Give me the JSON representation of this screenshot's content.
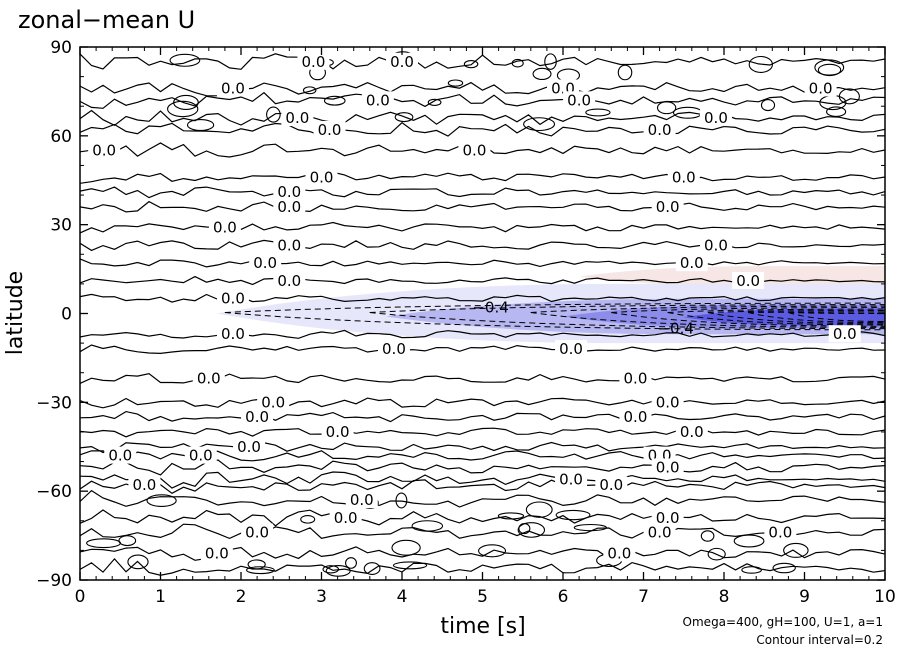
{
  "chart_data": {
    "type": "contour",
    "title": "zonal−mean U",
    "xlabel": "time [s]",
    "ylabel": "latitude",
    "xlim": [
      0,
      10
    ],
    "ylim": [
      -90,
      90
    ],
    "x_ticks": [
      "0",
      "1",
      "2",
      "3",
      "4",
      "5",
      "6",
      "7",
      "8",
      "9",
      "10"
    ],
    "y_ticks": [
      "90",
      "60",
      "30",
      "0",
      "−30",
      "−60",
      "−90"
    ],
    "contour_interval": 0.2,
    "contour_label_text": "0.0",
    "negative_label_text": "−0.4",
    "annotations": [
      "Omega=400, gH=100, U=1, a=1",
      "Contour interval=0.2"
    ],
    "contour_lines": [
      {
        "lat": 85,
        "value": 0.0,
        "label_at": [
          2.9,
          4.0
        ]
      },
      {
        "lat": 76,
        "value": 0.0,
        "label_at": [
          1.9,
          6.0,
          9.2
        ]
      },
      {
        "lat": 72,
        "value": 0.0,
        "label_at": [
          3.7,
          6.2
        ]
      },
      {
        "lat": 66,
        "value": 0.0,
        "label_at": [
          2.7,
          7.9
        ]
      },
      {
        "lat": 62,
        "value": 0.0,
        "label_at": [
          3.1,
          7.2
        ]
      },
      {
        "lat": 55,
        "value": 0.0,
        "label_at": [
          0.3,
          4.9
        ]
      },
      {
        "lat": 46,
        "value": 0.0,
        "label_at": [
          3.0,
          7.5
        ]
      },
      {
        "lat": 41,
        "value": 0.0,
        "label_at": [
          2.6
        ]
      },
      {
        "lat": 36,
        "value": 0.0,
        "label_at": [
          2.6,
          7.3
        ]
      },
      {
        "lat": 29,
        "value": 0.0,
        "label_at": [
          1.8
        ]
      },
      {
        "lat": 23,
        "value": 0.0,
        "label_at": [
          2.6,
          7.9
        ]
      },
      {
        "lat": 17,
        "value": 0.0,
        "label_at": [
          2.3,
          7.6
        ]
      },
      {
        "lat": 11,
        "value": 0.0,
        "label_at": [
          2.6,
          8.3
        ]
      },
      {
        "lat": 5,
        "value": 0.0,
        "label_at": [
          1.9
        ]
      },
      {
        "lat": -7,
        "value": 0.0,
        "label_at": [
          1.9,
          9.5
        ]
      },
      {
        "lat": -12,
        "value": 0.0,
        "label_at": [
          3.9,
          6.1
        ]
      },
      {
        "lat": -22,
        "value": 0.0,
        "label_at": [
          1.6,
          6.9
        ]
      },
      {
        "lat": -30,
        "value": 0.0,
        "label_at": [
          2.4,
          7.3
        ]
      },
      {
        "lat": -35,
        "value": 0.0,
        "label_at": [
          2.2,
          6.9
        ]
      },
      {
        "lat": -40,
        "value": 0.0,
        "label_at": [
          3.2,
          7.6
        ]
      },
      {
        "lat": -45,
        "value": 0.0,
        "label_at": [
          2.1
        ]
      },
      {
        "lat": -48,
        "value": 0.0,
        "label_at": [
          0.5,
          1.5,
          7.2
        ]
      },
      {
        "lat": -52,
        "value": 0.0,
        "label_at": [
          7.3
        ]
      },
      {
        "lat": -56,
        "value": 0.0,
        "label_at": [
          6.1
        ]
      },
      {
        "lat": -58,
        "value": 0.0,
        "label_at": [
          0.8,
          6.6
        ]
      },
      {
        "lat": -63,
        "value": 0.0,
        "label_at": [
          3.5
        ]
      },
      {
        "lat": -69,
        "value": 0.0,
        "label_at": [
          3.3,
          7.3
        ]
      },
      {
        "lat": -74,
        "value": 0.0,
        "label_at": [
          2.2,
          7.2,
          8.7
        ]
      },
      {
        "lat": -81,
        "value": 0.0,
        "label_at": [
          1.7,
          6.7
        ]
      },
      {
        "lat": -86,
        "value": 0.0,
        "label_at": []
      }
    ],
    "filled_regions": [
      {
        "sign": "positive",
        "lat_range": [
          9,
          16
        ],
        "x_range": [
          6.2,
          10
        ],
        "color": "#f6e6e6"
      },
      {
        "sign": "negative",
        "lat_range": [
          -10,
          10
        ],
        "x_range": [
          1.7,
          10
        ],
        "color": "#e7e7fb"
      },
      {
        "sign": "negative",
        "lat_range": [
          -7,
          5
        ],
        "x_range": [
          3.8,
          10
        ],
        "color": "#b7b7f2"
      },
      {
        "sign": "negative",
        "lat_range": [
          -5,
          3
        ],
        "x_range": [
          6.0,
          10
        ],
        "color": "#8c8cea"
      },
      {
        "sign": "negative",
        "lat_range": [
          -4,
          1.5
        ],
        "x_range": [
          7.5,
          10
        ],
        "color": "#5b5be2"
      }
    ],
    "dashed_contours": [
      {
        "value": -0.2,
        "x_start": 1.8
      },
      {
        "value": -0.4,
        "x_start": 3.6
      },
      {
        "value": -0.6,
        "x_start": 5.6
      },
      {
        "value": -0.8,
        "x_start": 6.6
      },
      {
        "value": -1.0,
        "x_start": 7.3
      },
      {
        "value": -1.2,
        "x_start": 7.8
      },
      {
        "value": -1.4,
        "x_start": 8.3
      },
      {
        "value": -1.6,
        "x_start": 8.8
      }
    ]
  }
}
